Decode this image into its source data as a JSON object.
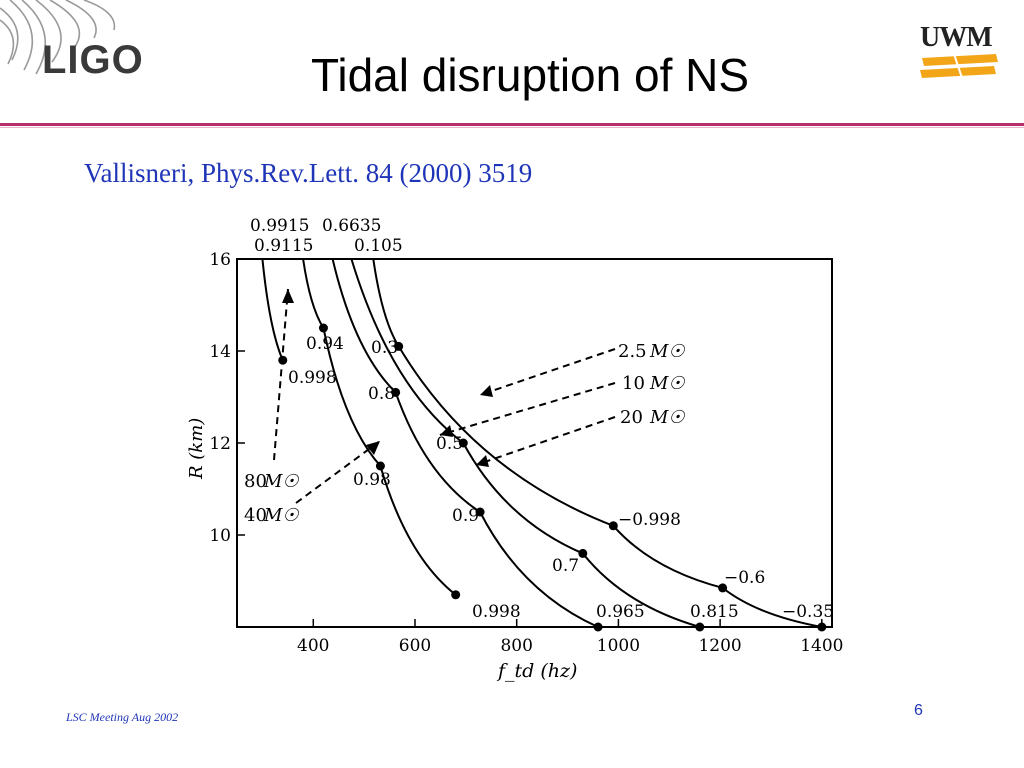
{
  "header": {
    "logo_left_text": "LIGO",
    "title": "Tidal disruption of NS",
    "logo_right_text": "UWM"
  },
  "citation": "Vallisneri, Phys.Rev.Lett. 84 (2000) 3519",
  "figure": {
    "xlabel": "f_td (hz)",
    "ylabel": "R (km)",
    "xlim": [
      250,
      1420
    ],
    "ylim": [
      8.0,
      16.0
    ],
    "xticks": [
      "400",
      "600",
      "800",
      "1000",
      "1200",
      "1400"
    ],
    "yticks": [
      "10",
      "12",
      "14",
      "16"
    ],
    "top_labels": [
      "0.9915",
      "0.6635",
      "0.9115",
      "0.105"
    ],
    "mass_labels": [
      {
        "text": "2.5",
        "unit": "M☉"
      },
      {
        "text": "10",
        "unit": "M☉"
      },
      {
        "text": "20",
        "unit": "M☉"
      },
      {
        "text": "80",
        "unit": "M☉"
      },
      {
        "text": "40",
        "unit": "M☉"
      }
    ],
    "curve_labels": [
      "0.94",
      "0.998",
      "0.3",
      "0.8",
      "0.5",
      "0.98",
      "0.9",
      "0.7",
      "−0.998",
      "−0.6",
      "0.998",
      "0.965",
      "0.815",
      "−0.35"
    ]
  },
  "chart_data": {
    "type": "line",
    "xlabel": "f_td (hz)",
    "ylabel": "R (km)",
    "xlim": [
      250,
      1420
    ],
    "ylim": [
      8.0,
      16.0
    ],
    "series": [
      {
        "name": "80 M☉",
        "x": [
          300,
          340
        ],
        "y": [
          16.0,
          13.8
        ]
      },
      {
        "name": "40 M☉",
        "x": [
          380,
          420,
          532,
          680
        ],
        "y": [
          16.0,
          14.5,
          11.5,
          8.7
        ]
      },
      {
        "name": "20 M☉",
        "x": [
          438,
          562,
          728,
          960
        ],
        "y": [
          16.0,
          13.1,
          10.5,
          8.0
        ]
      },
      {
        "name": "10 M☉",
        "x": [
          475,
          695,
          930,
          1160
        ],
        "y": [
          16.0,
          12.0,
          9.6,
          8.0
        ]
      },
      {
        "name": "2.5 M☉",
        "x": [
          518,
          568,
          990,
          1205,
          1400
        ],
        "y": [
          16.0,
          14.1,
          10.2,
          8.85,
          8.0
        ]
      }
    ]
  },
  "footer": {
    "left": "LSC Meeting Aug 2002",
    "page_number": "6"
  }
}
